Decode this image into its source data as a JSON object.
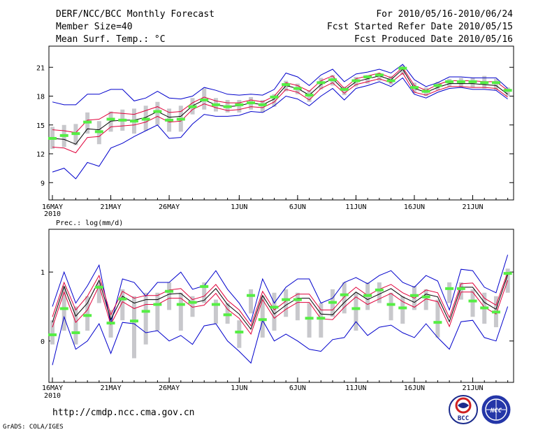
{
  "header": {
    "title": "DERF/NCC/BCC Monthly Forecast",
    "member_size": "Member Size=40",
    "variable1": "Mean Surf. Temp.: °C",
    "period": "For 2010/05/16-2010/06/24",
    "fcst_started": "Fcst Started Refer Date 2010/05/15",
    "fcst_produced": "Fcst Produced Date 2010/05/16"
  },
  "footer": {
    "url": "http://cmdp.ncc.cma.gov.cn",
    "credit": "GrADS: COLA/IGES",
    "logo_bcc": "BCC",
    "logo_ncc": "NCC"
  },
  "colors": {
    "envelope": "#0000cc",
    "spread": "#e0003a",
    "mean": "#000000",
    "box": "#c8c8cc",
    "median": "#55ee44"
  },
  "chart_data": [
    {
      "type": "line",
      "title": "Mean Surf. Temp.: °C",
      "x_start_day": 1,
      "x_ticks": [
        {
          "day": 1,
          "label": "16MAY",
          "sub": "2010"
        },
        {
          "day": 6,
          "label": "21MAY"
        },
        {
          "day": 11,
          "label": "26MAY"
        },
        {
          "day": 17,
          "label": "1JUN"
        },
        {
          "day": 22,
          "label": "6JUN"
        },
        {
          "day": 27,
          "label": "11JUN"
        },
        {
          "day": 32,
          "label": "16JUN"
        },
        {
          "day": 37,
          "label": "21JUN"
        }
      ],
      "y_ticks": [
        "9",
        "12",
        "15",
        "18",
        "21"
      ],
      "ylim": [
        7.2,
        23.2
      ],
      "xlim": [
        0.7,
        40.5
      ],
      "series": [
        {
          "name": "max",
          "values": [
            17.4,
            17.1,
            17.1,
            18.2,
            18.2,
            18.7,
            18.7,
            17.5,
            17.8,
            18.5,
            17.8,
            17.7,
            18.0,
            18.9,
            18.6,
            18.2,
            18.1,
            18.2,
            18.1,
            18.7,
            20.4,
            20.0,
            19.1,
            20.2,
            20.8,
            19.5,
            20.3,
            20.5,
            20.8,
            20.4,
            21.3,
            19.7,
            19.0,
            19.4,
            20.0,
            20.0,
            19.9,
            19.9,
            19.9,
            18.8
          ]
        },
        {
          "name": "max_sd",
          "values": [
            14.5,
            14.4,
            14.2,
            15.5,
            15.6,
            16.3,
            16.2,
            16.1,
            16.5,
            16.9,
            16.3,
            16.4,
            17.3,
            17.9,
            17.5,
            17.3,
            17.3,
            17.6,
            17.4,
            18.0,
            19.4,
            19.1,
            18.5,
            19.6,
            20.1,
            18.8,
            19.8,
            20.1,
            20.4,
            19.9,
            21.0,
            19.1,
            18.6,
            19.2,
            19.6,
            19.6,
            19.6,
            19.5,
            19.5,
            18.6
          ]
        },
        {
          "name": "mean",
          "values": [
            13.6,
            13.5,
            13.0,
            14.6,
            14.5,
            15.4,
            15.5,
            15.5,
            15.8,
            16.4,
            15.8,
            15.9,
            17.0,
            17.6,
            17.1,
            16.9,
            17.0,
            17.3,
            17.1,
            17.7,
            19.1,
            18.8,
            18.1,
            19.2,
            19.8,
            18.6,
            19.5,
            19.8,
            20.1,
            19.7,
            20.8,
            18.8,
            18.4,
            18.9,
            19.3,
            19.3,
            19.3,
            19.2,
            19.1,
            18.2
          ]
        },
        {
          "name": "min_sd",
          "values": [
            12.7,
            12.6,
            12.1,
            13.7,
            13.8,
            14.8,
            14.9,
            15.0,
            15.3,
            15.9,
            15.3,
            15.4,
            16.6,
            17.2,
            16.8,
            16.5,
            16.6,
            16.9,
            16.8,
            17.4,
            18.7,
            18.4,
            17.6,
            18.8,
            19.4,
            18.3,
            19.2,
            19.5,
            19.8,
            19.4,
            20.4,
            18.4,
            18.1,
            18.6,
            19.0,
            19.0,
            18.9,
            18.9,
            18.8,
            17.9
          ]
        },
        {
          "name": "min",
          "values": [
            10.1,
            10.5,
            9.4,
            11.1,
            10.7,
            12.6,
            13.1,
            13.8,
            14.4,
            15.0,
            13.6,
            13.7,
            15.1,
            16.1,
            15.9,
            15.9,
            16.0,
            16.4,
            16.3,
            17.0,
            18.0,
            17.7,
            17.0,
            18.0,
            18.8,
            17.6,
            18.8,
            19.1,
            19.5,
            19.0,
            19.9,
            18.2,
            17.8,
            18.4,
            18.8,
            18.9,
            18.7,
            18.7,
            18.6,
            17.7
          ]
        },
        {
          "name": "median",
          "values": [
            13.6,
            13.9,
            14.1,
            15.3,
            14.3,
            15.6,
            15.5,
            15.4,
            15.6,
            16.4,
            15.5,
            15.6,
            16.9,
            17.6,
            17.1,
            16.9,
            17.1,
            17.3,
            17.1,
            17.9,
            19.2,
            18.8,
            18.1,
            19.4,
            19.7,
            18.7,
            19.6,
            20.0,
            20.2,
            19.6,
            20.9,
            18.9,
            18.5,
            19.1,
            19.5,
            19.5,
            19.5,
            19.4,
            19.4,
            18.6
          ]
        },
        {
          "name": "box_high",
          "values": [
            14.8,
            15.0,
            15.1,
            16.3,
            15.4,
            16.4,
            16.6,
            16.7,
            17.0,
            17.4,
            16.7,
            17.0,
            17.8,
            18.8,
            17.8,
            17.6,
            17.6,
            17.9,
            17.6,
            18.2,
            19.6,
            19.3,
            18.6,
            19.9,
            20.2,
            19.0,
            20.0,
            20.2,
            20.4,
            20.1,
            21.2,
            19.4,
            18.9,
            19.5,
            19.8,
            19.9,
            19.9,
            20.1,
            19.8,
            18.9
          ]
        },
        {
          "name": "box_low",
          "values": [
            12.5,
            12.7,
            12.9,
            14.1,
            13.0,
            14.3,
            14.4,
            14.1,
            14.4,
            15.0,
            14.3,
            14.3,
            16.1,
            16.6,
            16.4,
            16.3,
            16.3,
            16.6,
            16.3,
            16.9,
            18.5,
            18.2,
            17.4,
            18.7,
            19.1,
            18.1,
            19.0,
            19.3,
            19.6,
            19.2,
            20.2,
            18.3,
            18.0,
            18.6,
            19.0,
            18.9,
            18.9,
            18.8,
            18.6,
            18.0
          ]
        }
      ]
    },
    {
      "type": "line",
      "title": "Prec.: log(mm/d)",
      "x_start_day": 1,
      "x_ticks": [
        {
          "day": 1,
          "label": "16MAY",
          "sub": "2010"
        },
        {
          "day": 6,
          "label": "21MAY"
        },
        {
          "day": 11,
          "label": "26MAY"
        },
        {
          "day": 17,
          "label": "1JUN"
        },
        {
          "day": 22,
          "label": "6JUN"
        },
        {
          "day": 27,
          "label": "11JUN"
        },
        {
          "day": 32,
          "label": "16JUN"
        },
        {
          "day": 37,
          "label": "21JUN"
        }
      ],
      "y_ticks": [
        "0",
        "1"
      ],
      "ylim": [
        -0.6,
        1.62
      ],
      "xlim": [
        0.7,
        40.5
      ],
      "series": [
        {
          "name": "max",
          "values": [
            0.5,
            1.0,
            0.55,
            0.8,
            1.1,
            0.25,
            0.9,
            0.85,
            0.65,
            0.85,
            0.85,
            1.0,
            0.75,
            0.8,
            1.02,
            0.75,
            0.55,
            0.28,
            0.9,
            0.55,
            0.78,
            0.9,
            0.9,
            0.55,
            0.62,
            0.85,
            0.92,
            0.83,
            0.95,
            1.02,
            0.85,
            0.78,
            0.95,
            0.87,
            0.45,
            1.04,
            1.02,
            0.78,
            0.7,
            1.25
          ]
        },
        {
          "name": "max_sd",
          "values": [
            0.35,
            0.85,
            0.45,
            0.65,
            0.95,
            0.38,
            0.72,
            0.62,
            0.66,
            0.66,
            0.74,
            0.76,
            0.6,
            0.65,
            0.82,
            0.59,
            0.45,
            0.22,
            0.72,
            0.45,
            0.58,
            0.68,
            0.68,
            0.45,
            0.45,
            0.64,
            0.78,
            0.66,
            0.75,
            0.82,
            0.7,
            0.62,
            0.74,
            0.7,
            0.34,
            0.83,
            0.84,
            0.62,
            0.52,
            1.0
          ]
        },
        {
          "name": "mean",
          "values": [
            0.27,
            0.79,
            0.36,
            0.55,
            0.88,
            0.31,
            0.65,
            0.55,
            0.6,
            0.6,
            0.68,
            0.69,
            0.55,
            0.59,
            0.76,
            0.53,
            0.39,
            0.17,
            0.66,
            0.39,
            0.52,
            0.62,
            0.62,
            0.39,
            0.38,
            0.56,
            0.71,
            0.6,
            0.68,
            0.76,
            0.64,
            0.56,
            0.68,
            0.64,
            0.28,
            0.78,
            0.78,
            0.56,
            0.46,
            0.96
          ]
        },
        {
          "name": "min_sd",
          "values": [
            0.2,
            0.71,
            0.27,
            0.45,
            0.8,
            0.24,
            0.57,
            0.47,
            0.53,
            0.53,
            0.62,
            0.62,
            0.49,
            0.52,
            0.69,
            0.46,
            0.33,
            0.1,
            0.6,
            0.33,
            0.46,
            0.56,
            0.56,
            0.32,
            0.31,
            0.49,
            0.64,
            0.53,
            0.61,
            0.69,
            0.57,
            0.49,
            0.61,
            0.57,
            0.21,
            0.71,
            0.71,
            0.49,
            0.39,
            0.88
          ]
        },
        {
          "name": "min",
          "values": [
            -0.35,
            0.35,
            -0.12,
            0.0,
            0.25,
            -0.18,
            0.27,
            0.25,
            0.12,
            0.15,
            0.0,
            0.08,
            -0.05,
            0.22,
            0.25,
            0.0,
            -0.15,
            -0.32,
            0.3,
            0.0,
            0.1,
            0.0,
            -0.12,
            -0.15,
            0.02,
            0.05,
            0.28,
            0.08,
            0.2,
            0.23,
            0.12,
            0.05,
            0.25,
            0.05,
            -0.12,
            0.28,
            0.3,
            0.05,
            0.0,
            0.5
          ]
        },
        {
          "name": "median",
          "values": [
            0.09,
            0.47,
            0.12,
            0.37,
            0.78,
            0.26,
            0.61,
            0.29,
            0.43,
            0.53,
            0.72,
            0.53,
            0.56,
            0.79,
            0.53,
            0.38,
            0.13,
            0.66,
            0.31,
            0.49,
            0.6,
            0.6,
            0.33,
            0.33,
            0.56,
            0.67,
            0.47,
            0.66,
            0.74,
            0.53,
            0.48,
            0.66,
            0.64,
            0.27,
            0.76,
            0.76,
            0.58,
            0.48,
            0.42,
            0.98
          ]
        },
        {
          "name": "box_high",
          "values": [
            0.3,
            0.8,
            0.5,
            0.65,
            0.85,
            0.45,
            0.75,
            0.65,
            0.7,
            0.7,
            0.85,
            0.7,
            0.65,
            0.85,
            0.6,
            0.55,
            0.3,
            0.75,
            0.65,
            0.7,
            0.75,
            0.7,
            0.55,
            0.55,
            0.75,
            0.85,
            0.7,
            0.85,
            0.85,
            0.7,
            0.65,
            0.8,
            0.75,
            0.6,
            0.85,
            0.85,
            0.75,
            0.7,
            0.65,
            1.05
          ]
        },
        {
          "name": "box_low",
          "values": [
            -0.05,
            0.15,
            -0.05,
            0.15,
            0.55,
            0.05,
            0.3,
            -0.25,
            -0.05,
            0.15,
            0.45,
            0.15,
            0.35,
            0.55,
            0.25,
            0.25,
            -0.1,
            0.4,
            0.05,
            0.15,
            0.35,
            0.3,
            0.05,
            0.05,
            0.35,
            0.4,
            0.15,
            0.45,
            0.55,
            0.3,
            0.25,
            0.45,
            0.45,
            0.05,
            0.55,
            0.6,
            0.35,
            0.25,
            0.2,
            0.7
          ]
        }
      ]
    }
  ]
}
